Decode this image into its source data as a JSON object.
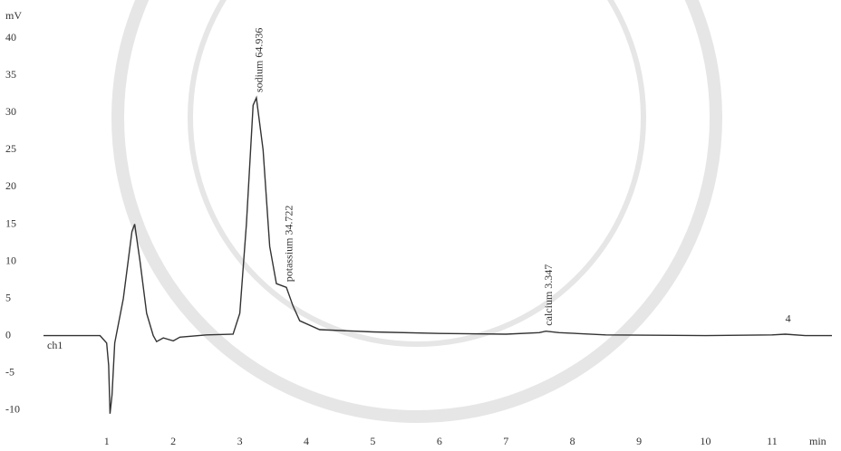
{
  "chart_data": {
    "type": "line",
    "y_label": "mV",
    "x_label": "min",
    "channel_label": "ch1",
    "x": [
      0.05,
      0.9,
      1.0,
      1.03,
      1.05,
      1.08,
      1.12,
      1.25,
      1.38,
      1.42,
      1.5,
      1.6,
      1.7,
      1.75,
      1.85,
      2.0,
      2.1,
      2.5,
      2.9,
      3.0,
      3.1,
      3.2,
      3.25,
      3.35,
      3.45,
      3.55,
      3.7,
      3.8,
      3.9,
      4.2,
      5,
      6,
      7,
      7.5,
      7.6,
      7.8,
      8.5,
      10,
      11,
      11.2,
      11.5,
      11.9
    ],
    "values": [
      0,
      0,
      -1,
      -4,
      -10.5,
      -8,
      -1,
      5,
      14,
      15,
      10,
      3,
      0,
      -0.8,
      -0.3,
      -0.7,
      -0.2,
      0.1,
      0.2,
      3,
      15,
      31,
      32,
      25,
      12,
      7,
      6.5,
      4,
      2,
      0.8,
      0.5,
      0.3,
      0.2,
      0.4,
      0.6,
      0.4,
      0.1,
      0,
      0.1,
      0.2,
      0,
      0
    ],
    "color": "#333333",
    "xlim": [
      0.05,
      11.9
    ],
    "xticks": [
      1,
      2,
      3,
      4,
      5,
      6,
      7,
      8,
      9,
      10,
      11
    ],
    "ylim": [
      -11.5,
      41.5
    ],
    "yticks": [
      40,
      35,
      30,
      25,
      20,
      15,
      10,
      5,
      0,
      -5,
      -10
    ],
    "annotations": [
      {
        "text": "sodium 64.936",
        "x": 3.25
      },
      {
        "text": "potassium 34.722",
        "x": 3.7
      },
      {
        "text": "calcium 3.347",
        "x": 7.6
      },
      {
        "text": "4",
        "x": 11.2
      }
    ]
  }
}
